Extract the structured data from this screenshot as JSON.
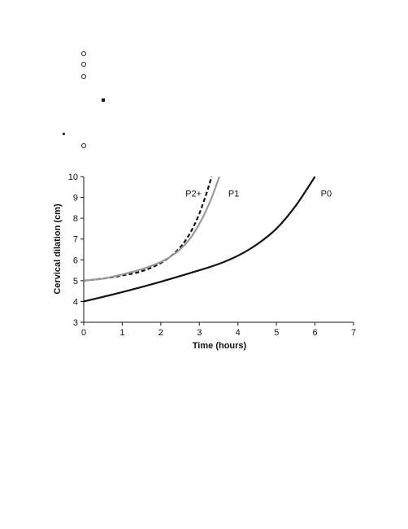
{
  "chart_data": {
    "type": "line",
    "title": "",
    "xlabel": "Time (hours)",
    "ylabel": "Cervical dilation (cm)",
    "xlim": [
      0,
      7
    ],
    "ylim": [
      3,
      10
    ],
    "xticks": [
      0,
      1,
      2,
      3,
      4,
      5,
      6,
      7
    ],
    "yticks": [
      3,
      4,
      5,
      6,
      7,
      8,
      9,
      10
    ],
    "grid": false,
    "legend": "none",
    "series": [
      {
        "name": "P2+",
        "color": "#111111",
        "style": "dashed",
        "x": [
          0,
          0.5,
          1,
          1.5,
          2,
          2.4,
          2.7,
          2.95,
          3.15,
          3.32
        ],
        "y": [
          5.0,
          5.1,
          5.25,
          5.45,
          5.85,
          6.4,
          7.1,
          8.0,
          9.0,
          10.0
        ]
      },
      {
        "name": "P1",
        "color": "#999999",
        "style": "solid",
        "x": [
          0,
          0.5,
          1,
          1.5,
          2,
          2.4,
          2.75,
          3.05,
          3.3,
          3.52
        ],
        "y": [
          5.0,
          5.1,
          5.3,
          5.55,
          5.9,
          6.35,
          7.0,
          7.9,
          8.9,
          10.0
        ]
      },
      {
        "name": "P0",
        "color": "#111111",
        "style": "solid",
        "x": [
          0,
          1,
          2,
          3,
          3.5,
          4,
          4.5,
          5,
          5.5,
          6
        ],
        "y": [
          4.0,
          4.45,
          4.95,
          5.5,
          5.8,
          6.2,
          6.75,
          7.5,
          8.6,
          10.0
        ]
      }
    ],
    "labels": [
      {
        "text": "P2+",
        "x": 2.85,
        "y": 9.2
      },
      {
        "text": "P1",
        "x": 3.75,
        "y": 9.2
      },
      {
        "text": "P0",
        "x": 6.15,
        "y": 9.2
      }
    ]
  }
}
